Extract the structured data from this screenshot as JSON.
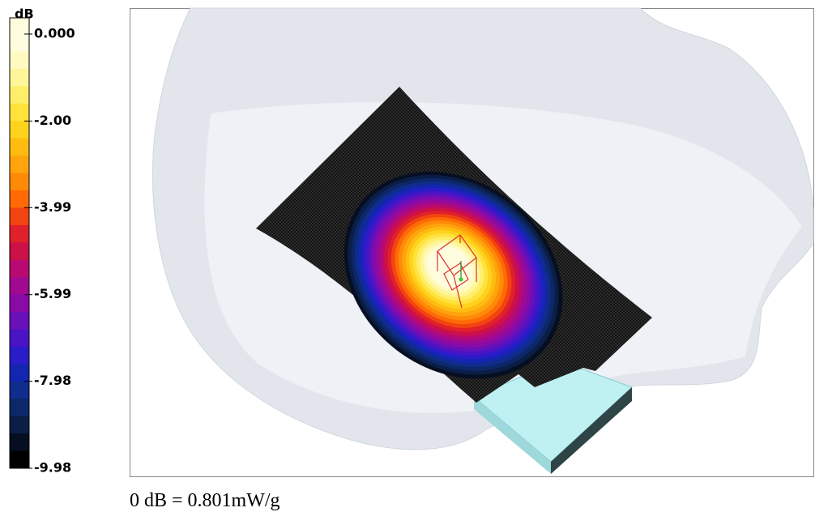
{
  "colorbar": {
    "unit": "dB",
    "ticks": [
      {
        "value": 0,
        "label": "0.000"
      },
      {
        "value": -2.0,
        "label": "-2.00"
      },
      {
        "value": -3.99,
        "label": "-3.99"
      },
      {
        "value": -5.99,
        "label": "-5.99"
      },
      {
        "value": -7.98,
        "label": "-7.98"
      },
      {
        "value": -9.98,
        "label": "-9.98"
      }
    ],
    "band_colors": [
      "#fffde0",
      "#fffac0",
      "#fff59a",
      "#ffee6a",
      "#ffe23c",
      "#ffd21e",
      "#ffbc10",
      "#ffa40c",
      "#ff8a08",
      "#ff6a06",
      "#f24410",
      "#e0202a",
      "#cc1048",
      "#b80a70",
      "#a00a90",
      "#8a0aa8",
      "#6a10b8",
      "#4a14c4",
      "#2a1cc8",
      "#1426b0",
      "#102c8c",
      "#0c2868",
      "#0a1e46",
      "#060e22",
      "#000000"
    ]
  },
  "caption": "0 dB = 0.801mW/g"
}
